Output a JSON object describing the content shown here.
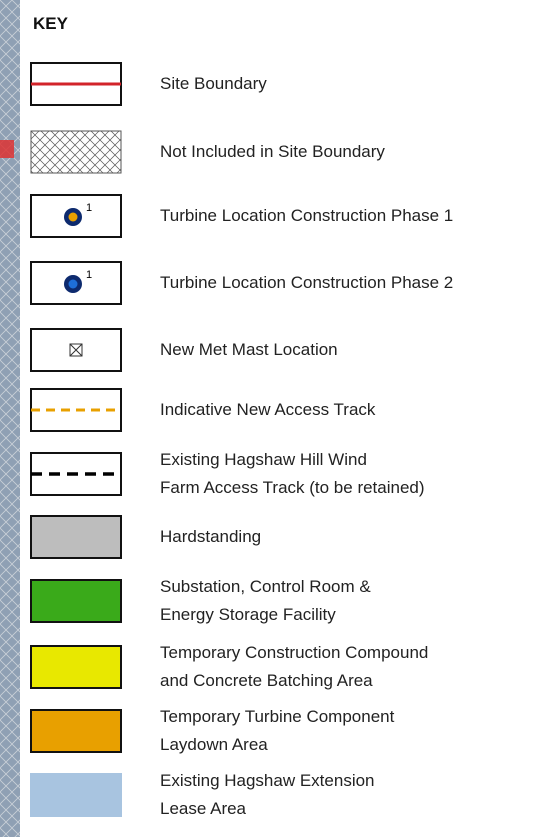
{
  "title": "KEY",
  "items": [
    {
      "lines": [
        "Site Boundary"
      ]
    },
    {
      "lines": [
        "Not Included in Site Boundary"
      ]
    },
    {
      "lines": [
        "Turbine Location Construction Phase 1"
      ],
      "marker": "1"
    },
    {
      "lines": [
        "Turbine Location Construction Phase 2"
      ],
      "marker": "1"
    },
    {
      "lines": [
        "New Met Mast Location"
      ]
    },
    {
      "lines": [
        "Indicative New Access Track"
      ]
    },
    {
      "lines": [
        "Existing Hagshaw Hill Wind",
        "Farm Access Track (to be retained)"
      ]
    },
    {
      "lines": [
        "Hardstanding"
      ]
    },
    {
      "lines": [
        "Substation, Control Room &",
        "Energy Storage Facility"
      ]
    },
    {
      "lines": [
        "Temporary Construction Compound",
        "and Concrete Batching Area"
      ]
    },
    {
      "lines": [
        "Temporary Turbine Component",
        "Laydown Area"
      ]
    },
    {
      "lines": [
        "Existing Hagshaw Extension",
        "Lease Area"
      ]
    }
  ]
}
